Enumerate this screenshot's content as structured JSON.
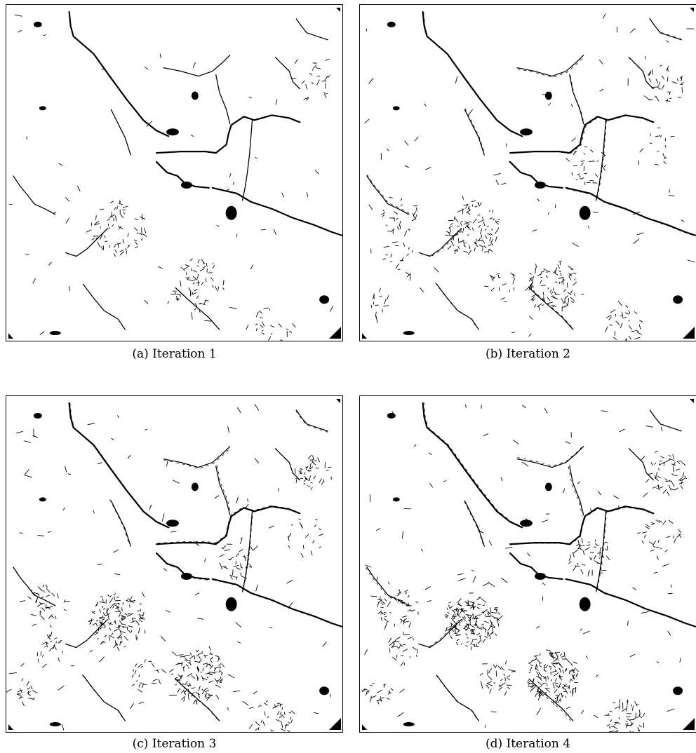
{
  "figure": {
    "panels": [
      {
        "id": "a",
        "caption": "(a) Iteration 1"
      },
      {
        "id": "b",
        "caption": "(b) Iteration 2"
      },
      {
        "id": "c",
        "caption": "(c) Iteration 3"
      },
      {
        "id": "d",
        "caption": "(d) Iteration 4"
      }
    ]
  },
  "colors": {
    "ink": "#000000",
    "background": "#ffffff"
  }
}
